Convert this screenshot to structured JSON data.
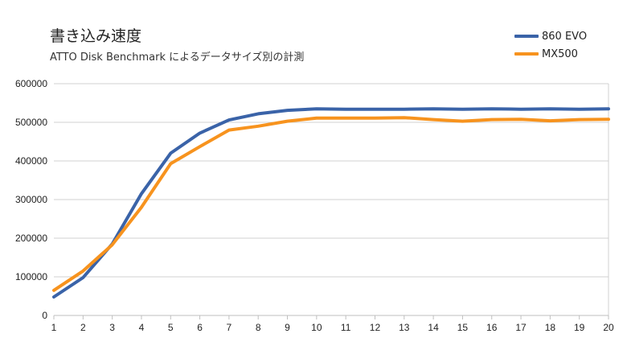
{
  "chart_data": {
    "type": "line",
    "title": "書き込み速度",
    "subtitle": "ATTO Disk Benchmark によるデータサイズ別の計測",
    "x": [
      1,
      2,
      3,
      4,
      5,
      6,
      7,
      8,
      9,
      10,
      11,
      12,
      13,
      14,
      15,
      16,
      17,
      18,
      19,
      20
    ],
    "ylim": [
      0,
      600000
    ],
    "yticks": [
      "0",
      "100000",
      "200000",
      "300000",
      "400000",
      "500000",
      "600000"
    ],
    "grid": true,
    "legend_position": "top-right",
    "series": [
      {
        "name": "860 EVO",
        "color": "#3a63a8",
        "values": [
          48000,
          98000,
          185000,
          315000,
          420000,
          472000,
          506000,
          522000,
          531000,
          535000,
          534000,
          534000,
          534000,
          535000,
          534000,
          535000,
          534000,
          535000,
          534000,
          535000
        ]
      },
      {
        "name": "MX500",
        "color": "#f7931e",
        "values": [
          65000,
          115000,
          183000,
          280000,
          393000,
          437000,
          480000,
          490000,
          503000,
          511000,
          511000,
          511000,
          512000,
          507000,
          503000,
          507000,
          508000,
          504000,
          507000,
          508000
        ]
      }
    ]
  }
}
